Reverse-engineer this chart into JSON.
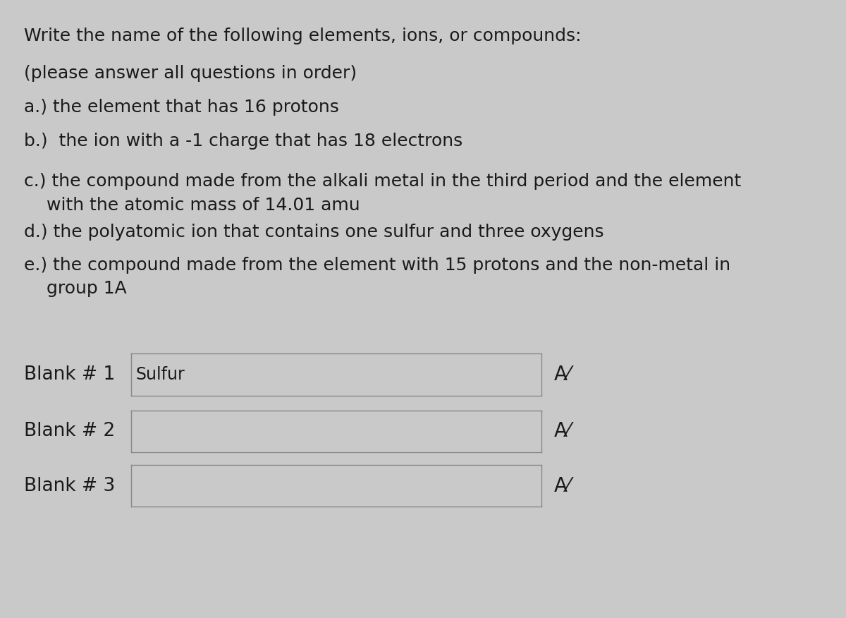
{
  "background_color": "#c9c9c9",
  "title_line": "Write the name of the following elements, ions, or compounds:",
  "subtitle_line": "(please answer all questions in order)",
  "questions": [
    {
      "label": "a.)",
      "text": " the element that has 16 protons"
    },
    {
      "label": "b.)",
      "text": "  the ion with a -1 charge that has 18 electrons"
    },
    {
      "label": "c.)",
      "text": " the compound made from the alkali metal in the third period and the element\n    with the atomic mass of 14.01 amu"
    },
    {
      "label": "d.)",
      "text": " the polyatomic ion that contains one sulfur and three oxygens"
    },
    {
      "label": "e.)",
      "text": " the compound made from the element with 15 protons and the non-metal in\n    group 1A"
    }
  ],
  "blanks": [
    {
      "label": "Blank # 1",
      "content": "Sulfur"
    },
    {
      "label": "Blank # 2",
      "content": ""
    },
    {
      "label": "Blank # 3",
      "content": ""
    }
  ],
  "text_color": "#1a1a1a",
  "box_fill": "#c9c9c9",
  "box_edge": "#888888",
  "question_fontsize": 18,
  "blank_label_fontsize": 19,
  "blank_content_fontsize": 17,
  "av_fontsize": 20
}
